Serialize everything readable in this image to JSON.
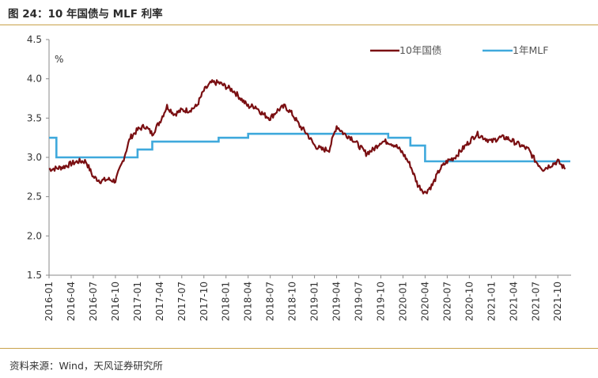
{
  "header": {
    "title": "图 24：10 年国债与 MLF 利率"
  },
  "footer": {
    "source": "资料来源：Wind，天风证券研究所"
  },
  "chart_data": {
    "type": "line",
    "ylabel": "%",
    "ylim": [
      1.5,
      4.5
    ],
    "yticks": [
      "1.5",
      "2.0",
      "2.5",
      "3.0",
      "3.5",
      "4.0",
      "4.5"
    ],
    "xticks": [
      "2016-01",
      "2016-04",
      "2016-07",
      "2016-10",
      "2017-01",
      "2017-04",
      "2017-07",
      "2017-10",
      "2018-01",
      "2018-04",
      "2018-07",
      "2018-10",
      "2019-01",
      "2019-04",
      "2019-07",
      "2019-10",
      "2020-01",
      "2020-04",
      "2020-07",
      "2020-10",
      "2021-01",
      "2021-04",
      "2021-07",
      "2021-10"
    ],
    "legend_position": "top-right",
    "colors": {
      "treasury": "#7a0f12",
      "mlf": "#3fa9dc"
    },
    "series": [
      {
        "name": "10年国债",
        "x": [
          "2016-01",
          "2016-02",
          "2016-03",
          "2016-04",
          "2016-05",
          "2016-06",
          "2016-07",
          "2016-08",
          "2016-09",
          "2016-10",
          "2016-11",
          "2016-12",
          "2017-01",
          "2017-02",
          "2017-03",
          "2017-04",
          "2017-05",
          "2017-06",
          "2017-07",
          "2017-08",
          "2017-09",
          "2017-10",
          "2017-11",
          "2017-12",
          "2018-01",
          "2018-02",
          "2018-03",
          "2018-04",
          "2018-05",
          "2018-06",
          "2018-07",
          "2018-08",
          "2018-09",
          "2018-10",
          "2018-11",
          "2018-12",
          "2019-01",
          "2019-02",
          "2019-03",
          "2019-04",
          "2019-05",
          "2019-06",
          "2019-07",
          "2019-08",
          "2019-09",
          "2019-10",
          "2019-11",
          "2019-12",
          "2020-01",
          "2020-02",
          "2020-03",
          "2020-04",
          "2020-05",
          "2020-06",
          "2020-07",
          "2020-08",
          "2020-09",
          "2020-10",
          "2020-11",
          "2020-12",
          "2021-01",
          "2021-02",
          "2021-03",
          "2021-04",
          "2021-05",
          "2021-06",
          "2021-07",
          "2021-08",
          "2021-09",
          "2021-10",
          "2021-11"
        ],
        "values": [
          2.85,
          2.86,
          2.88,
          2.92,
          2.95,
          2.95,
          2.75,
          2.7,
          2.72,
          2.7,
          2.95,
          3.25,
          3.35,
          3.4,
          3.3,
          3.45,
          3.65,
          3.55,
          3.6,
          3.6,
          3.65,
          3.85,
          3.95,
          3.95,
          3.9,
          3.85,
          3.75,
          3.65,
          3.65,
          3.55,
          3.5,
          3.6,
          3.65,
          3.55,
          3.4,
          3.3,
          3.15,
          3.1,
          3.1,
          3.4,
          3.3,
          3.25,
          3.15,
          3.05,
          3.1,
          3.2,
          3.2,
          3.15,
          3.05,
          2.9,
          2.65,
          2.55,
          2.65,
          2.85,
          2.95,
          3.0,
          3.1,
          3.2,
          3.3,
          3.25,
          3.2,
          3.25,
          3.25,
          3.2,
          3.15,
          3.1,
          2.95,
          2.85,
          2.9,
          2.95,
          2.85
        ]
      },
      {
        "name": "1年MLF",
        "steps": [
          {
            "from": "2016-01",
            "to": "2016-02",
            "value": 3.25
          },
          {
            "from": "2016-02",
            "to": "2017-01",
            "value": 3.0
          },
          {
            "from": "2017-01",
            "to": "2017-03",
            "value": 3.1
          },
          {
            "from": "2017-03",
            "to": "2017-12",
            "value": 3.2
          },
          {
            "from": "2017-12",
            "to": "2018-04",
            "value": 3.25
          },
          {
            "from": "2018-04",
            "to": "2019-11",
            "value": 3.3
          },
          {
            "from": "2019-11",
            "to": "2020-02",
            "value": 3.25
          },
          {
            "from": "2020-02",
            "to": "2020-04",
            "value": 3.15
          },
          {
            "from": "2020-04",
            "to": "2021-11",
            "value": 2.95
          }
        ]
      }
    ]
  }
}
